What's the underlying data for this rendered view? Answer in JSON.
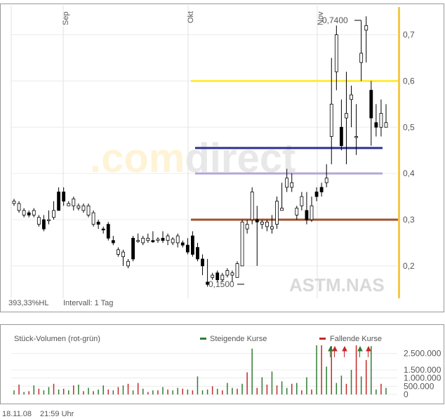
{
  "chart_data": [
    {
      "type": "candlestick",
      "symbol": "ASTM.NAS",
      "watermark": ".comdirect",
      "info_left": "393,33%HL",
      "interval": "Intervall: 1 Tag",
      "month_labels": [
        "Sep",
        "Okt",
        "Nov"
      ],
      "y_ticks": [
        "0,2",
        "0,3",
        "0,4",
        "0,5",
        "0,6",
        "0,7"
      ],
      "ylim": [
        0.13,
        0.76
      ],
      "high_label": "0,7400",
      "low_label": "0,1500",
      "horizontal_lines": [
        {
          "value": 0.6,
          "color": "#ffeb3b"
        },
        {
          "value": 0.455,
          "color": "#2f3192"
        },
        {
          "value": 0.4,
          "color": "#b4a7d6"
        },
        {
          "value": 0.3,
          "color": "#a0522d"
        }
      ],
      "candles": [
        [
          0.335,
          0.345,
          0.33,
          0.34
        ],
        [
          0.32,
          0.34,
          0.315,
          0.335
        ],
        [
          0.31,
          0.325,
          0.305,
          0.32
        ],
        [
          0.315,
          0.32,
          0.305,
          0.31
        ],
        [
          0.31,
          0.325,
          0.305,
          0.32
        ],
        [
          0.29,
          0.31,
          0.285,
          0.305
        ],
        [
          0.3,
          0.31,
          0.275,
          0.28
        ],
        [
          0.3,
          0.32,
          0.29,
          0.3
        ],
        [
          0.305,
          0.34,
          0.3,
          0.32
        ],
        [
          0.36,
          0.37,
          0.32,
          0.32
        ],
        [
          0.36,
          0.37,
          0.33,
          0.34
        ],
        [
          0.33,
          0.34,
          0.33,
          0.335
        ],
        [
          0.33,
          0.35,
          0.32,
          0.345
        ],
        [
          0.325,
          0.335,
          0.32,
          0.33
        ],
        [
          0.32,
          0.335,
          0.315,
          0.33
        ],
        [
          0.31,
          0.335,
          0.305,
          0.33
        ],
        [
          0.29,
          0.32,
          0.285,
          0.315
        ],
        [
          0.295,
          0.3,
          0.28,
          0.29
        ],
        [
          0.28,
          0.285,
          0.27,
          0.278
        ],
        [
          0.29,
          0.295,
          0.255,
          0.26
        ],
        [
          0.255,
          0.265,
          0.245,
          0.25
        ],
        [
          0.225,
          0.24,
          0.22,
          0.235
        ],
        [
          0.22,
          0.235,
          0.2,
          0.23
        ],
        [
          0.2,
          0.215,
          0.195,
          0.21
        ],
        [
          0.26,
          0.265,
          0.21,
          0.215
        ],
        [
          0.255,
          0.27,
          0.25,
          0.255
        ],
        [
          0.25,
          0.265,
          0.245,
          0.26
        ],
        [
          0.255,
          0.27,
          0.25,
          0.26
        ],
        [
          0.255,
          0.275,
          0.25,
          0.252
        ],
        [
          0.255,
          0.262,
          0.25,
          0.258
        ],
        [
          0.26,
          0.275,
          0.25,
          0.255
        ],
        [
          0.255,
          0.27,
          0.245,
          0.265
        ],
        [
          0.25,
          0.262,
          0.245,
          0.258
        ],
        [
          0.25,
          0.27,
          0.24,
          0.265
        ],
        [
          0.25,
          0.255,
          0.24,
          0.245
        ],
        [
          0.245,
          0.26,
          0.225,
          0.23
        ],
        [
          0.265,
          0.275,
          0.22,
          0.225
        ],
        [
          0.24,
          0.25,
          0.21,
          0.215
        ],
        [
          0.215,
          0.225,
          0.18,
          0.2
        ],
        [
          0.165,
          0.215,
          0.155,
          0.16
        ],
        [
          0.175,
          0.185,
          0.17,
          0.18
        ],
        [
          0.185,
          0.19,
          0.165,
          0.17
        ],
        [
          0.17,
          0.185,
          0.165,
          0.18
        ],
        [
          0.18,
          0.195,
          0.175,
          0.19
        ],
        [
          0.18,
          0.19,
          0.165,
          0.185
        ],
        [
          0.175,
          0.21,
          0.175,
          0.205
        ],
        [
          0.2,
          0.3,
          0.2,
          0.295
        ],
        [
          0.28,
          0.3,
          0.27,
          0.29
        ],
        [
          0.3,
          0.37,
          0.29,
          0.36
        ],
        [
          0.3,
          0.33,
          0.2,
          0.295
        ],
        [
          0.29,
          0.3,
          0.28,
          0.295
        ],
        [
          0.285,
          0.3,
          0.275,
          0.295
        ],
        [
          0.28,
          0.31,
          0.27,
          0.285
        ],
        [
          0.29,
          0.35,
          0.28,
          0.34
        ],
        [
          0.32,
          0.38,
          0.32,
          0.325
        ],
        [
          0.37,
          0.41,
          0.36,
          0.39
        ],
        [
          0.37,
          0.4,
          0.36,
          0.38
        ],
        [
          0.31,
          0.33,
          0.3,
          0.325
        ],
        [
          0.33,
          0.36,
          0.32,
          0.35
        ],
        [
          0.32,
          0.36,
          0.29,
          0.3
        ],
        [
          0.3,
          0.35,
          0.295,
          0.33
        ],
        [
          0.36,
          0.37,
          0.34,
          0.35
        ],
        [
          0.37,
          0.38,
          0.35,
          0.36
        ],
        [
          0.38,
          0.42,
          0.37,
          0.39
        ],
        [
          0.48,
          0.65,
          0.42,
          0.55
        ],
        [
          0.62,
          0.72,
          0.58,
          0.7
        ],
        [
          0.5,
          0.56,
          0.45,
          0.46
        ],
        [
          0.52,
          0.62,
          0.42,
          0.53
        ],
        [
          0.56,
          0.59,
          0.5,
          0.57
        ],
        [
          0.48,
          0.55,
          0.44,
          0.48
        ],
        [
          0.64,
          0.73,
          0.6,
          0.66
        ],
        [
          0.71,
          0.74,
          0.64,
          0.72
        ],
        [
          0.58,
          0.6,
          0.46,
          0.52
        ],
        [
          0.51,
          0.55,
          0.48,
          0.5
        ],
        [
          0.5,
          0.56,
          0.48,
          0.53
        ],
        [
          0.5,
          0.55,
          0.5,
          0.51
        ]
      ]
    },
    {
      "type": "bar",
      "title": "Stück-Volumen (rot-grün)",
      "legend": [
        {
          "label": "Steigende Kurse",
          "color": "#2e7d32"
        },
        {
          "label": "Fallende Kurse",
          "color": "#c62828"
        }
      ],
      "y_ticks": [
        "0",
        "500.000",
        "1.000.000",
        "1.500.000",
        "2.500.000"
      ],
      "ylim": [
        0,
        3000000
      ],
      "values": [
        250000,
        600000,
        150000,
        200000,
        550000,
        350000,
        250000,
        450000,
        650000,
        300000,
        350000,
        250000,
        550000,
        600000,
        200000,
        400000,
        200000,
        300000,
        550000,
        300000,
        250000,
        450000,
        550000,
        650000,
        250000,
        700000,
        350000,
        150000,
        250000,
        250000,
        450000,
        300000,
        250000,
        400000,
        350000,
        300000,
        250000,
        1100000,
        250000,
        300000,
        500000,
        350000,
        250000,
        700000,
        400000,
        350000,
        650000,
        1350000,
        2800000,
        400000,
        1050000,
        600000,
        1400000,
        550000,
        800000,
        400000,
        650000,
        700000,
        250000,
        1050000,
        300000,
        3000000,
        3000000,
        1700000,
        2950000,
        700000,
        1150000,
        650000,
        1500000,
        3000000,
        1100000,
        2100000,
        2950000,
        300000,
        650000,
        400000
      ],
      "rising": [
        true,
        false,
        true,
        false,
        true,
        false,
        true,
        true,
        false,
        true,
        false,
        true,
        false,
        true,
        false,
        true,
        false,
        true,
        true,
        false,
        true,
        false,
        true,
        false,
        true,
        false,
        true,
        false,
        true,
        false,
        true,
        false,
        true,
        true,
        false,
        true,
        false,
        true,
        true,
        true,
        false,
        true,
        false,
        true,
        true,
        false,
        true,
        false,
        true,
        false,
        true,
        false,
        true,
        false,
        true,
        true,
        false,
        true,
        false,
        true,
        false,
        true,
        false,
        true,
        false,
        true,
        true,
        false,
        true,
        false,
        true,
        false,
        true,
        true,
        false,
        true
      ]
    }
  ],
  "footer": {
    "date": "18.11.08",
    "time": "21:59 Uhr"
  }
}
